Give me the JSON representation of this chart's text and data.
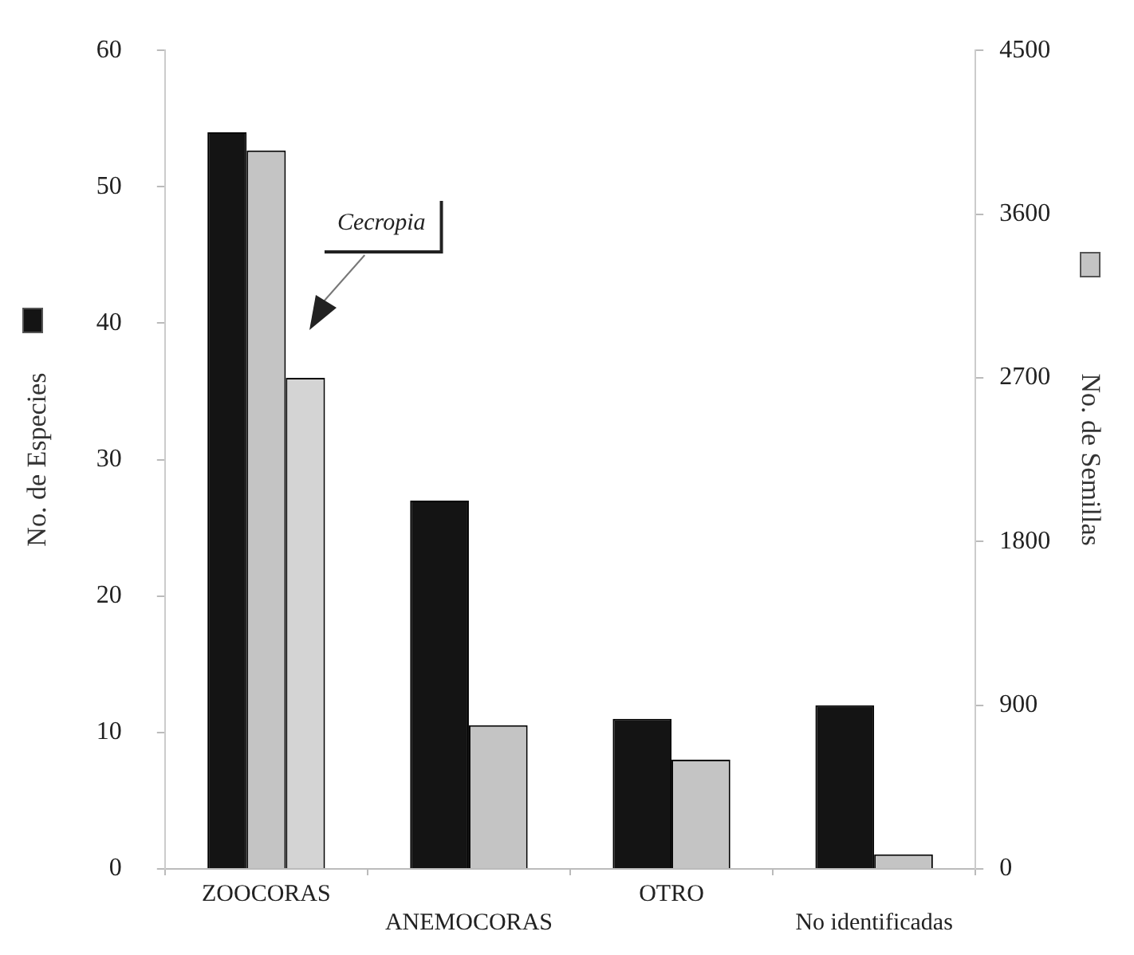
{
  "chart_data": {
    "type": "bar",
    "ylabel": "No. de Especies",
    "y2label": "No. de Semillas",
    "categories": [
      "ZOOCORAS",
      "ANEMOCORAS",
      "OTRO",
      "No identificadas"
    ],
    "series": [
      {
        "color": "#141414",
        "values": [
          54,
          27,
          11,
          12
        ]
      },
      {
        "color": "#c4c4c4",
        "axis": "y2",
        "values": [
          3950,
          790,
          600,
          80
        ]
      },
      {
        "color": "#d4d4d4",
        "axis": "y2",
        "values": [
          2700,
          null,
          null,
          null
        ]
      }
    ],
    "ylim": [
      0,
      60
    ],
    "yticks": [
      0,
      10,
      20,
      30,
      40,
      50,
      60
    ],
    "y2lim": [
      0,
      4500
    ],
    "y2ticks": [
      0,
      900,
      1800,
      2700,
      3600,
      4500
    ],
    "annotations": [
      "Cecropia"
    ],
    "grid": false,
    "legend": false
  }
}
